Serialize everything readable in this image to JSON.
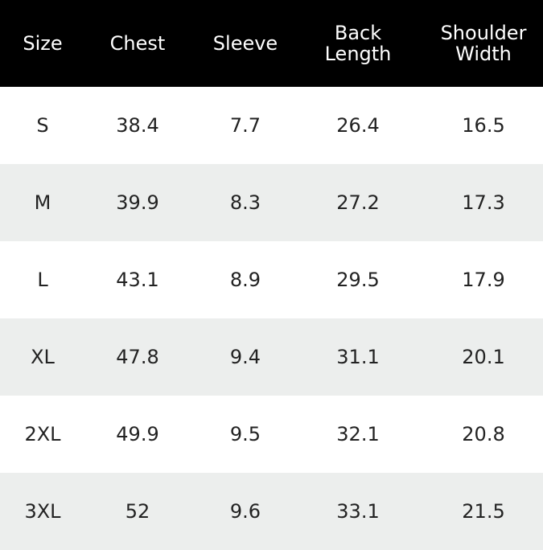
{
  "table": {
    "header": [
      "Size",
      "Chest",
      "Sleeve",
      "Back Length",
      "Shoulder Width"
    ],
    "rows": [
      [
        "S",
        38.4,
        7.7,
        26.4,
        16.5
      ],
      [
        "M",
        39.9,
        8.3,
        27.2,
        17.3
      ],
      [
        "L",
        43.1,
        8.9,
        29.5,
        17.9
      ],
      [
        "XL",
        47.8,
        9.4,
        31.1,
        20.1
      ],
      [
        "2XL",
        49.9,
        9.5,
        32.1,
        20.8
      ],
      [
        "3XL",
        52,
        9.6,
        33.1,
        21.5
      ]
    ]
  }
}
